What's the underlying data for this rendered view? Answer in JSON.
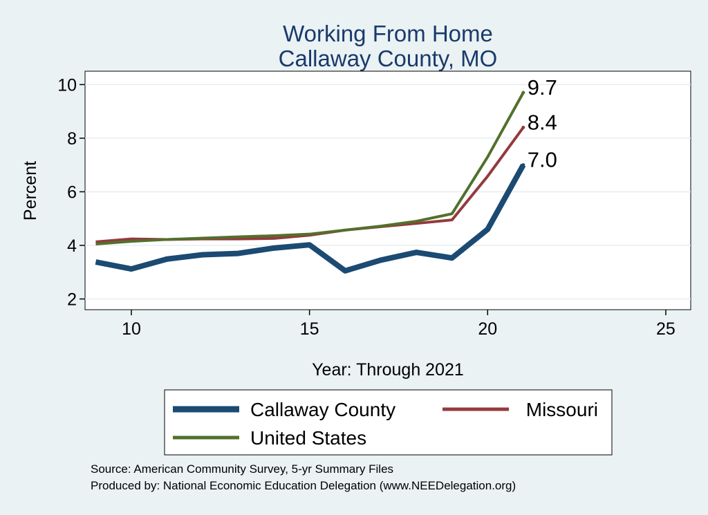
{
  "chart_data": {
    "type": "line",
    "title": [
      "Working From Home",
      "Callaway County, MO"
    ],
    "xlabel": "Year: Through 2021",
    "ylabel": "Percent",
    "xlim": [
      8.7,
      25.7
    ],
    "ylim": [
      1.6,
      10.5
    ],
    "xticks": [
      10,
      15,
      20,
      25
    ],
    "yticks": [
      2,
      4,
      6,
      8,
      10
    ],
    "grid": true,
    "x": [
      9,
      10,
      11,
      12,
      13,
      14,
      15,
      16,
      17,
      18,
      19,
      20,
      21
    ],
    "series": [
      {
        "name": "Callaway County",
        "color": "#1b4a72",
        "width": 8,
        "values": [
          3.38,
          3.12,
          3.49,
          3.65,
          3.7,
          3.9,
          4.02,
          3.05,
          3.45,
          3.74,
          3.53,
          4.6,
          7.0
        ],
        "end_label": "7.0"
      },
      {
        "name": "Missouri",
        "color": "#943a3e",
        "width": 4,
        "values": [
          4.13,
          4.24,
          4.22,
          4.24,
          4.24,
          4.26,
          4.38,
          4.57,
          4.7,
          4.82,
          4.95,
          6.58,
          8.4
        ],
        "end_label": "8.4"
      },
      {
        "name": "United States",
        "color": "#52702c",
        "width": 4,
        "values": [
          4.05,
          4.15,
          4.22,
          4.27,
          4.32,
          4.36,
          4.42,
          4.57,
          4.72,
          4.9,
          5.18,
          7.3,
          9.7
        ],
        "end_label": "9.7"
      }
    ],
    "legend": [
      {
        "label": "Callaway County",
        "series": 0
      },
      {
        "label": "Missouri",
        "series": 1
      },
      {
        "label": "United States",
        "series": 2
      }
    ]
  },
  "source_lines": [
    "Source: American Community Survey, 5-yr Summary Files",
    "Produced by: National Economic Education Delegation (www.NEEDelegation.org)"
  ],
  "colors": {
    "background": "#eaf2f3",
    "plot_background": "#ffffff",
    "grid": "#e8eeee",
    "title": "#1a3a6b"
  }
}
